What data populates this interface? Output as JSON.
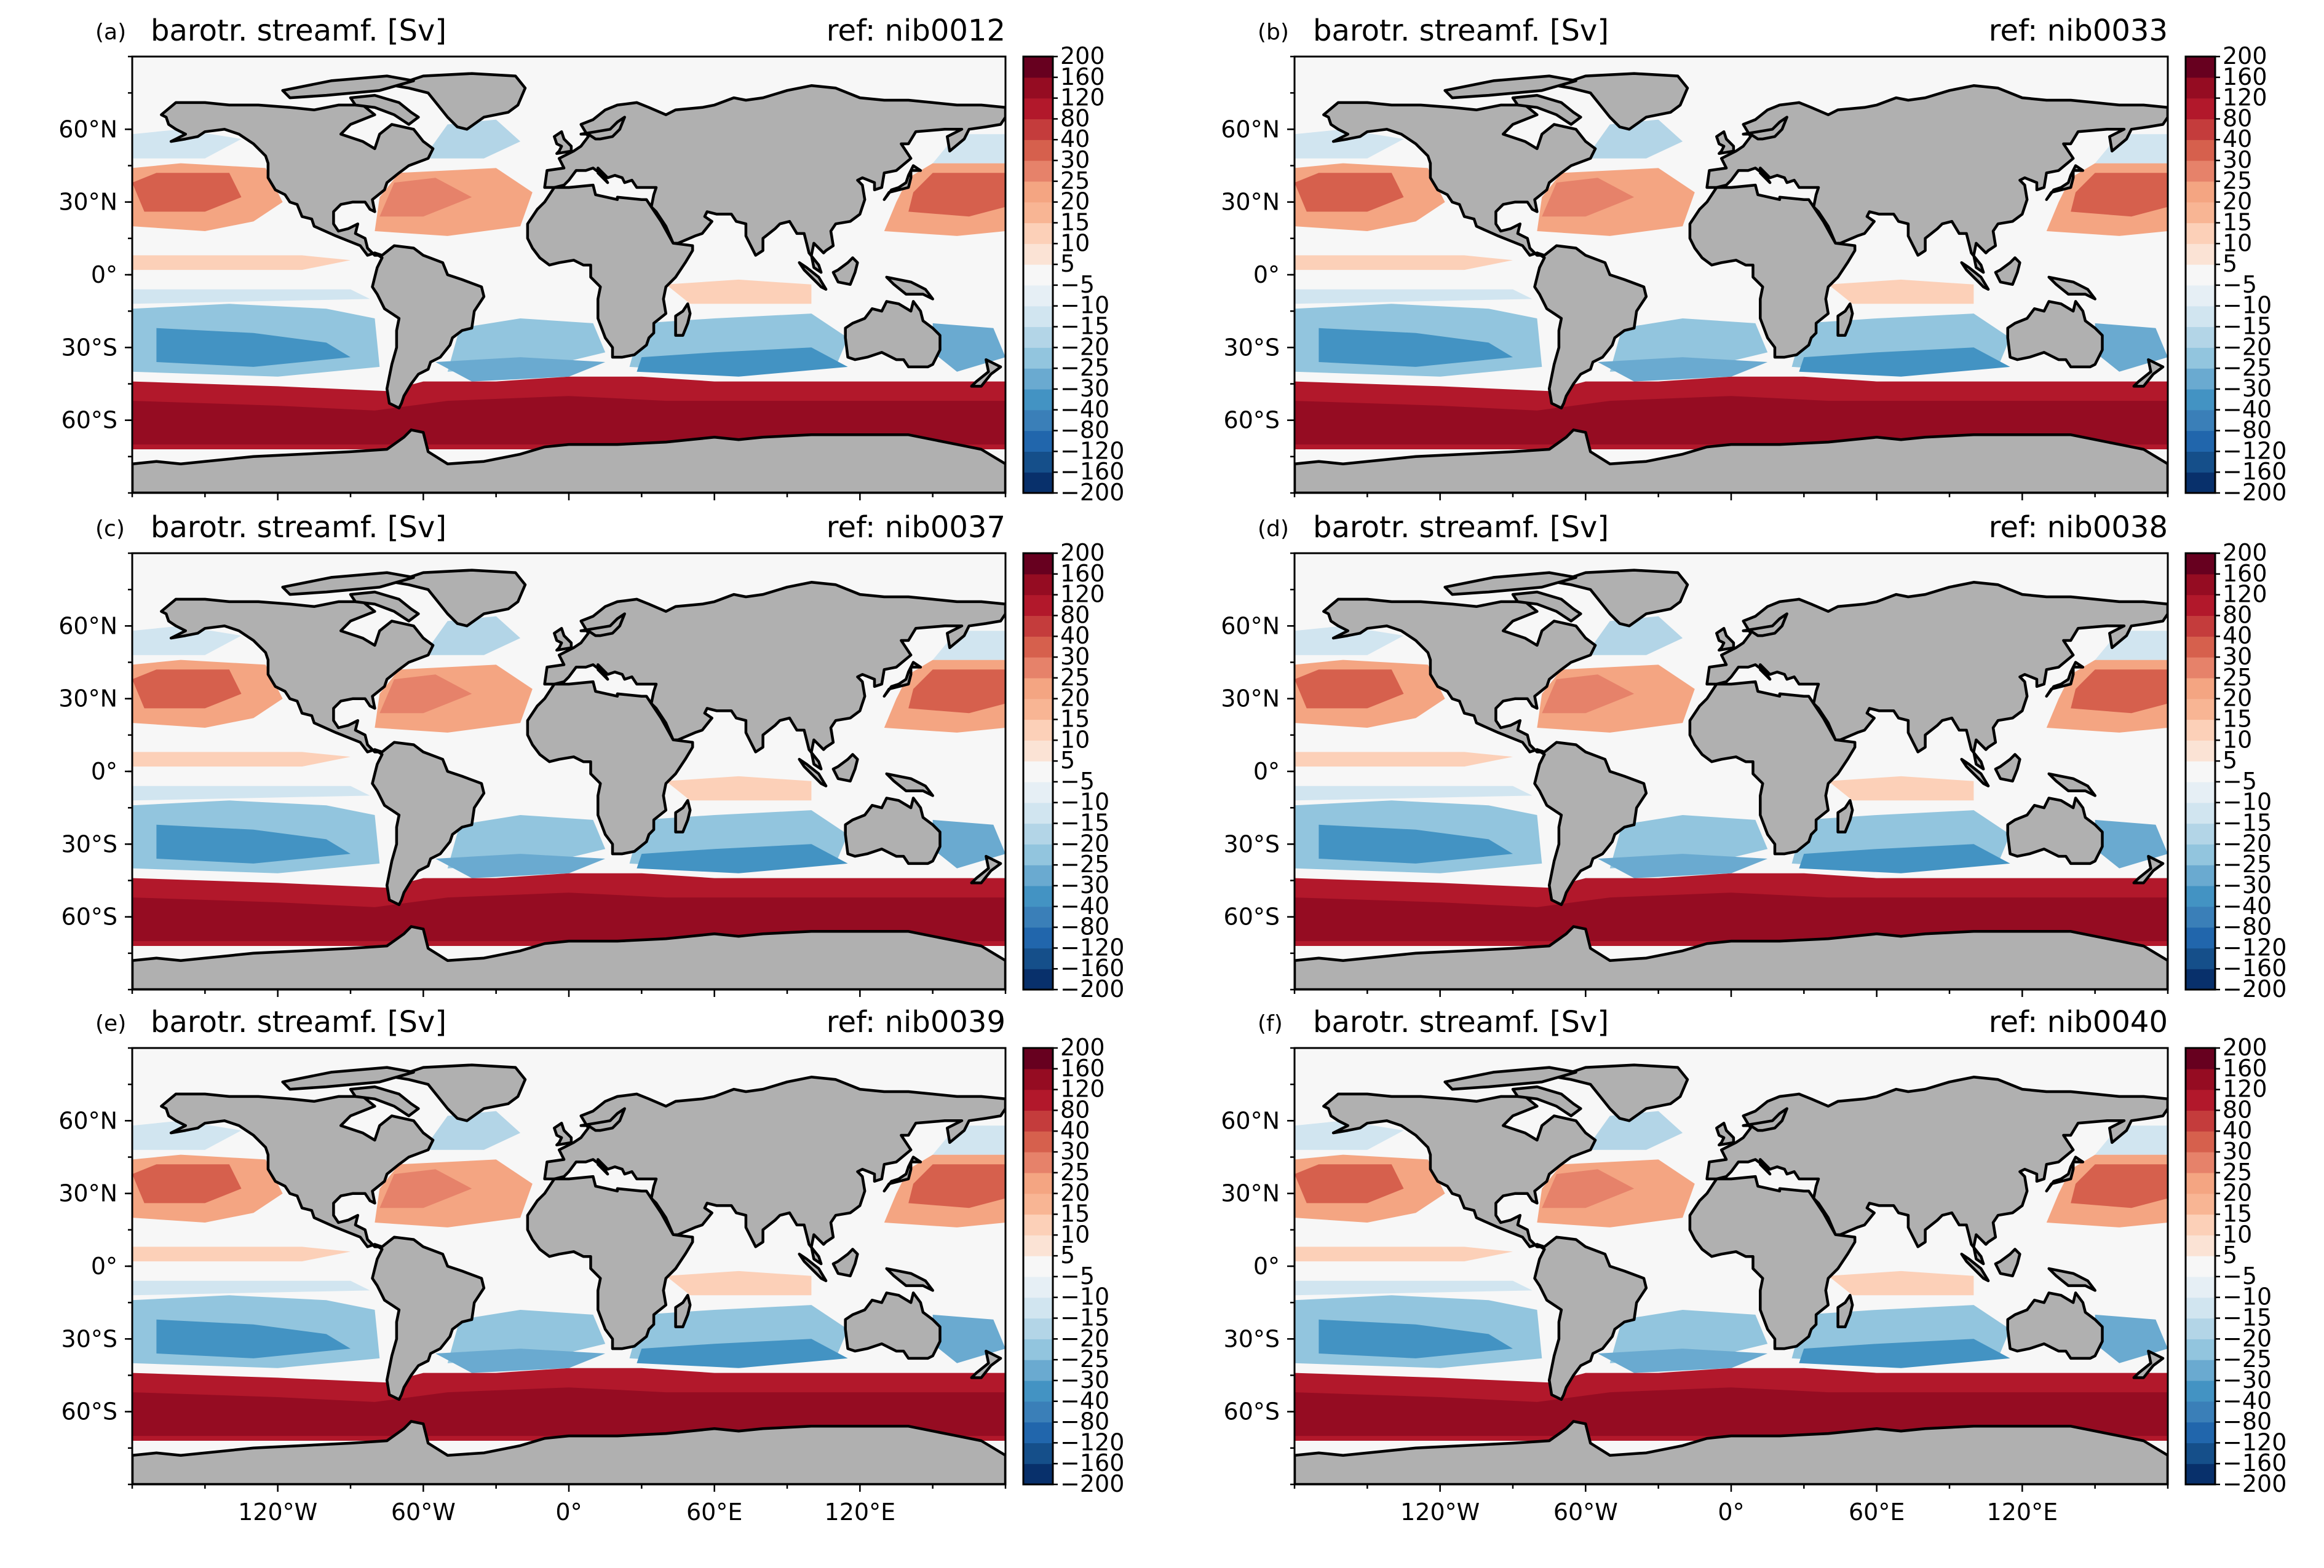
{
  "figure": {
    "panels": [
      {
        "label": "(a)",
        "title": "barotr. streamf. [Sv]",
        "ref": "ref: nib0012"
      },
      {
        "label": "(b)",
        "title": "barotr. streamf. [Sv]",
        "ref": "ref: nib0033"
      },
      {
        "label": "(c)",
        "title": "barotr. streamf. [Sv]",
        "ref": "ref: nib0037"
      },
      {
        "label": "(d)",
        "title": "barotr. streamf. [Sv]",
        "ref": "ref: nib0038"
      },
      {
        "label": "(e)",
        "title": "barotr. streamf. [Sv]",
        "ref": "ref: nib0039"
      },
      {
        "label": "(f)",
        "title": "barotr. streamf. [Sv]",
        "ref": "ref: nib0040"
      }
    ],
    "lat_ticks": [
      {
        "label": "60°N",
        "lat": 60
      },
      {
        "label": "30°N",
        "lat": 30
      },
      {
        "label": "0°",
        "lat": 0
      },
      {
        "label": "30°S",
        "lat": -30
      },
      {
        "label": "60°S",
        "lat": -60
      }
    ],
    "lon_ticks": [
      {
        "label": "120°W",
        "lon": -120
      },
      {
        "label": "60°W",
        "lon": -60
      },
      {
        "label": "0°",
        "lon": 0
      },
      {
        "label": "60°E",
        "lon": 60
      },
      {
        "label": "120°E",
        "lon": 120
      }
    ],
    "map_extent": {
      "lon": [
        -180,
        180
      ],
      "lat": [
        -90,
        90
      ]
    },
    "land_color": "#b0b0b0",
    "colorbar": {
      "levels": [
        "-200",
        "-160",
        "-120",
        "-80",
        "-40",
        "-30",
        "-25",
        "-20",
        "-15",
        "-10",
        "-5",
        "5",
        "10",
        "15",
        "20",
        "25",
        "30",
        "40",
        "80",
        "120",
        "160",
        "200"
      ],
      "colors": [
        "#08306b",
        "#154f8a",
        "#2166ac",
        "#3a7fb8",
        "#4393c3",
        "#6aaad0",
        "#92c5de",
        "#b3d5e7",
        "#d1e5f0",
        "#e6eff5",
        "#f7f7f7",
        "#fbe3d5",
        "#fcd0b8",
        "#f8b594",
        "#f4a582",
        "#e6826a",
        "#d6604d",
        "#c43c3c",
        "#b2182b",
        "#950c22",
        "#67001f"
      ]
    }
  }
}
